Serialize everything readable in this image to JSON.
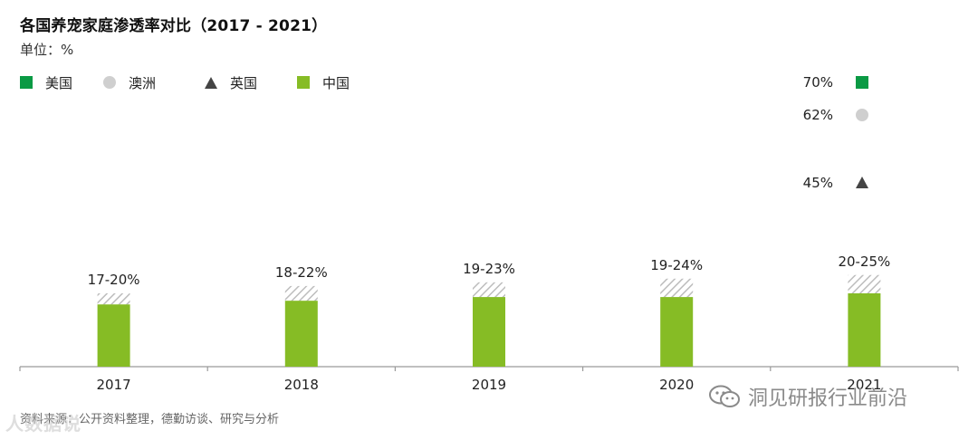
{
  "header": {
    "title": "各国养宠家庭渗透率对比（2017 - 2021）",
    "unit": "单位：%"
  },
  "legend": [
    {
      "label": "美国",
      "marker": "square",
      "color": "#0a9a44"
    },
    {
      "label": "澳洲",
      "marker": "circle",
      "color": "#cfcfcf"
    },
    {
      "label": "英国",
      "marker": "triangle",
      "color": "#444444"
    },
    {
      "label": "中国",
      "marker": "square",
      "color": "#86bc25"
    }
  ],
  "chart_data": {
    "type": "bar",
    "categories": [
      "2017",
      "2018",
      "2019",
      "2020",
      "2021"
    ],
    "series": [
      {
        "name": "中国",
        "low": [
          17,
          18,
          19,
          19,
          20
        ],
        "high": [
          20,
          22,
          23,
          24,
          25
        ],
        "labels": [
          "17-20%",
          "18-22%",
          "19-23%",
          "19-24%",
          "20-25%"
        ],
        "color": "#86bc25"
      }
    ],
    "markers_2021": [
      {
        "series": "美国",
        "value": 70,
        "label": "70%",
        "marker": "square",
        "color": "#0a9a44"
      },
      {
        "series": "澳洲",
        "value": 62,
        "label": "62%",
        "marker": "circle",
        "color": "#cfcfcf"
      },
      {
        "series": "英国",
        "value": 45,
        "label": "45%",
        "marker": "triangle",
        "color": "#444444"
      }
    ],
    "ylim": [
      0,
      75
    ],
    "grid": false
  },
  "footer": {
    "source": "资料来源：公开资料整理，德勤访谈、研究与分析",
    "watermark_left": "人数据说",
    "watermark_right": "洞见研报行业前沿"
  }
}
